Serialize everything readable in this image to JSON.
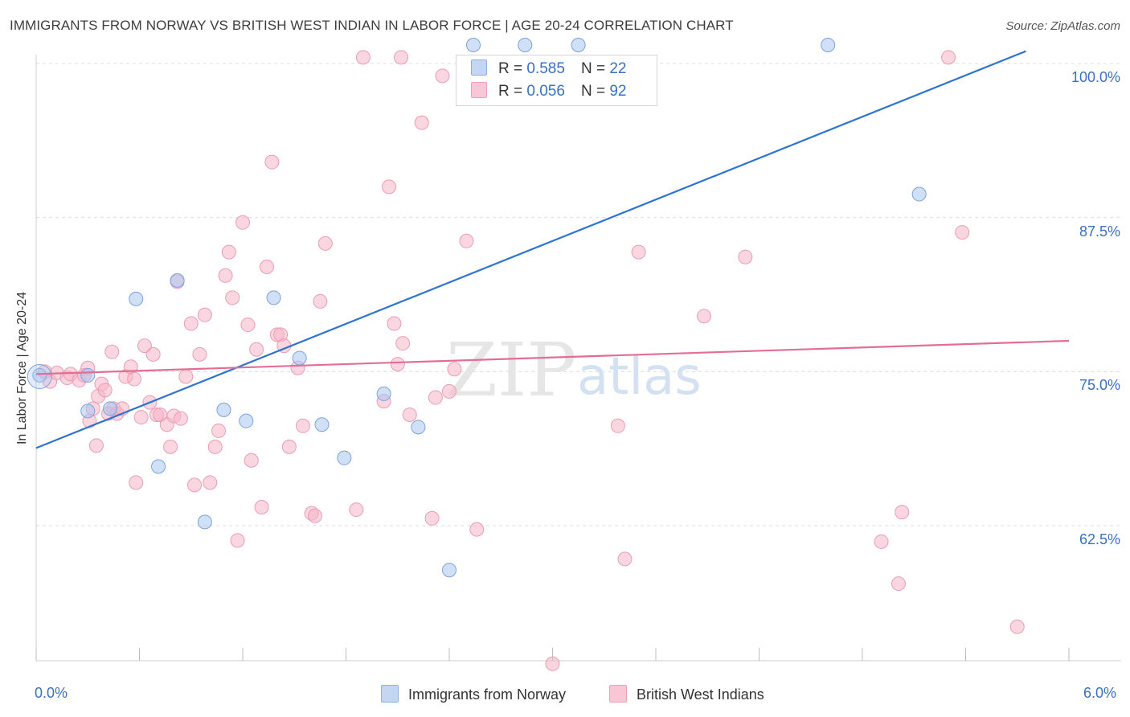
{
  "title": "IMMIGRANTS FROM NORWAY VS BRITISH WEST INDIAN IN LABOR FORCE | AGE 20-24 CORRELATION CHART",
  "source": "Source: ZipAtlas.com",
  "watermark": {
    "zip": "ZIP",
    "atlas": "atlas"
  },
  "legend": {
    "norway": {
      "r_label": "R =",
      "r_value": "0.585",
      "n_label": "N =",
      "n_value": "22"
    },
    "bwi": {
      "r_label": "R =",
      "r_value": "0.056",
      "n_label": "N =",
      "n_value": "92"
    }
  },
  "chart_data": {
    "type": "scatter",
    "title": "IMMIGRANTS FROM NORWAY VS BRITISH WEST INDIAN IN LABOR FORCE | AGE 20-24 CORRELATION CHART",
    "xlabel": "",
    "ylabel": "In Labor Force | Age 20-24",
    "x_tick_labels": [
      "0.0%",
      "6.0%"
    ],
    "y_tick_labels": [
      "100.0%",
      "87.5%",
      "75.0%",
      "62.5%"
    ],
    "y_ticks": [
      100.0,
      87.5,
      75.0,
      62.5
    ],
    "xlim": [
      0,
      6
    ],
    "ylim": [
      51.0,
      102.0
    ],
    "colors": {
      "norway": "#a9c6f0",
      "norway_line": "#2f73d0",
      "bwi": "#f5b5c8",
      "bwi_line": "#e46d96"
    },
    "series": [
      {
        "name": "Immigrants from Norway",
        "key": "norway",
        "trend": {
          "x0": 0.0,
          "y0": 68.8,
          "x1": 5.75,
          "y1": 101.0
        },
        "points": [
          [
            0.02,
            74.7
          ],
          [
            0.3,
            74.7
          ],
          [
            0.3,
            71.8
          ],
          [
            0.43,
            72.0
          ],
          [
            0.58,
            80.9
          ],
          [
            0.71,
            67.3
          ],
          [
            0.82,
            82.4
          ],
          [
            0.98,
            62.8
          ],
          [
            1.09,
            71.9
          ],
          [
            1.22,
            71.0
          ],
          [
            1.38,
            81.0
          ],
          [
            1.53,
            76.1
          ],
          [
            1.66,
            70.7
          ],
          [
            1.79,
            68.0
          ],
          [
            2.02,
            73.2
          ],
          [
            2.22,
            70.5
          ],
          [
            2.4,
            58.9
          ],
          [
            2.54,
            101.5
          ],
          [
            2.84,
            101.5
          ],
          [
            3.15,
            101.5
          ],
          [
            4.6,
            101.5
          ],
          [
            5.13,
            89.4
          ]
        ]
      },
      {
        "name": "British West Indians",
        "key": "bwi",
        "trend": {
          "x0": 0.0,
          "y0": 74.8,
          "x1": 6.0,
          "y1": 77.5
        },
        "points": [
          [
            0.05,
            75.0
          ],
          [
            0.08,
            74.2
          ],
          [
            0.12,
            74.9
          ],
          [
            0.18,
            74.5
          ],
          [
            0.2,
            74.8
          ],
          [
            0.25,
            74.3
          ],
          [
            0.28,
            74.7
          ],
          [
            0.3,
            75.3
          ],
          [
            0.33,
            72.0
          ],
          [
            0.36,
            73.0
          ],
          [
            0.38,
            74.0
          ],
          [
            0.4,
            73.5
          ],
          [
            0.31,
            71.0
          ],
          [
            0.35,
            69.0
          ],
          [
            0.42,
            71.6
          ],
          [
            0.45,
            72.0
          ],
          [
            0.47,
            71.6
          ],
          [
            0.5,
            72.0
          ],
          [
            0.44,
            76.6
          ],
          [
            0.52,
            74.6
          ],
          [
            0.55,
            75.4
          ],
          [
            0.57,
            74.4
          ],
          [
            0.58,
            66.0
          ],
          [
            0.61,
            71.3
          ],
          [
            0.63,
            77.1
          ],
          [
            0.66,
            72.5
          ],
          [
            0.68,
            76.4
          ],
          [
            0.7,
            71.5
          ],
          [
            0.72,
            71.5
          ],
          [
            0.76,
            70.7
          ],
          [
            0.78,
            68.9
          ],
          [
            0.8,
            71.4
          ],
          [
            0.82,
            82.3
          ],
          [
            0.84,
            71.2
          ],
          [
            0.87,
            74.6
          ],
          [
            0.9,
            78.9
          ],
          [
            0.92,
            65.8
          ],
          [
            0.95,
            76.4
          ],
          [
            0.98,
            79.6
          ],
          [
            1.01,
            66.0
          ],
          [
            1.04,
            68.9
          ],
          [
            1.06,
            70.2
          ],
          [
            1.1,
            82.8
          ],
          [
            1.12,
            84.7
          ],
          [
            1.14,
            81.0
          ],
          [
            1.17,
            61.3
          ],
          [
            1.2,
            87.1
          ],
          [
            1.23,
            78.8
          ],
          [
            1.25,
            67.8
          ],
          [
            1.28,
            76.8
          ],
          [
            1.31,
            64.0
          ],
          [
            1.34,
            83.5
          ],
          [
            1.37,
            92.0
          ],
          [
            1.4,
            78.0
          ],
          [
            1.42,
            78.0
          ],
          [
            1.44,
            77.1
          ],
          [
            1.47,
            68.9
          ],
          [
            1.52,
            75.3
          ],
          [
            1.55,
            70.6
          ],
          [
            1.6,
            63.5
          ],
          [
            1.62,
            63.3
          ],
          [
            1.65,
            80.7
          ],
          [
            1.68,
            85.4
          ],
          [
            1.86,
            63.8
          ],
          [
            1.9,
            100.5
          ],
          [
            2.05,
            90.0
          ],
          [
            2.02,
            72.6
          ],
          [
            2.08,
            78.9
          ],
          [
            2.1,
            75.6
          ],
          [
            2.13,
            77.3
          ],
          [
            2.17,
            71.5
          ],
          [
            2.12,
            100.5
          ],
          [
            2.24,
            95.2
          ],
          [
            2.3,
            63.1
          ],
          [
            2.32,
            72.9
          ],
          [
            2.36,
            99.0
          ],
          [
            2.4,
            73.4
          ],
          [
            2.43,
            75.2
          ],
          [
            2.5,
            85.6
          ],
          [
            2.56,
            62.2
          ],
          [
            3.0,
            51.3
          ],
          [
            3.38,
            70.6
          ],
          [
            3.42,
            59.8
          ],
          [
            3.5,
            84.7
          ],
          [
            3.88,
            79.5
          ],
          [
            4.12,
            84.3
          ],
          [
            4.91,
            61.2
          ],
          [
            5.01,
            57.8
          ],
          [
            5.03,
            63.6
          ],
          [
            5.3,
            100.5
          ],
          [
            5.38,
            86.3
          ],
          [
            5.7,
            54.3
          ]
        ]
      }
    ]
  },
  "legend_bottom": {
    "norway": "Immigrants from Norway",
    "bwi": "British West Indians"
  }
}
